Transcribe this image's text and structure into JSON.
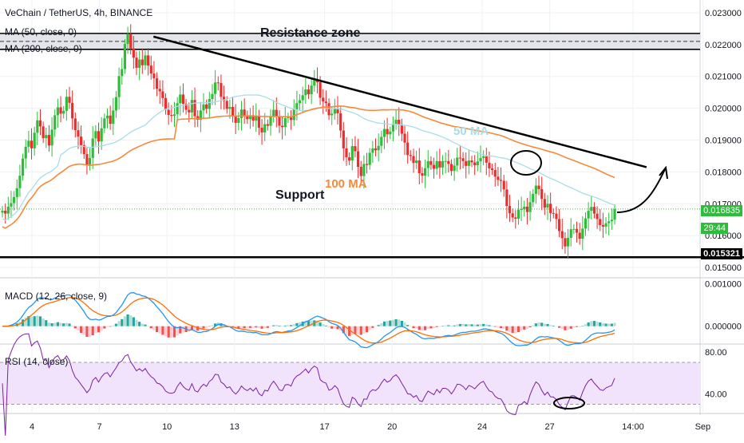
{
  "header": {
    "symbol": "VeChain / TetherUS, 4h, BINANCE",
    "ma50": "MA (50, close, 0)",
    "ma200": "MA (200, close, 0)"
  },
  "annotations": {
    "resistance": "Resistance zone",
    "support": "Support",
    "ma100": "100 MA",
    "ma50": "50 MA"
  },
  "price_tags": {
    "current": "0.016835",
    "countdown": "29:44",
    "support_level": "0.015321"
  },
  "macd_panel": {
    "label": "MACD (12, 26, close, 9)"
  },
  "rsi_panel": {
    "label": "RSI (14, close)"
  },
  "colors": {
    "up": "#26a69a",
    "up_bright": "#2ebd3a",
    "down": "#ef2b2b",
    "ma50": "#a9dde6",
    "ma100": "#f7893b",
    "rsi_fill": "#f1e3fb",
    "rsi_line": "#7b1fa2",
    "macd": "#2196f3",
    "signal": "#ff6d00"
  },
  "chart_data": [
    {
      "type": "candlestick",
      "title": "VeChain / TetherUS, 4h, BINANCE",
      "y_ticks": [
        "0.023000",
        "0.022000",
        "0.021000",
        "0.020000",
        "0.019000",
        "0.018000",
        "0.017000",
        "0.016000",
        "0.015000"
      ],
      "ylim": [
        0.0147,
        0.0234
      ],
      "x_ticks": [
        "4",
        "7",
        "10",
        "13",
        "17",
        "20",
        "24",
        "27",
        "14:00",
        "Sep"
      ],
      "resistance_zone": [
        0.02185,
        0.02235
      ],
      "support_level": 0.015321,
      "current_price": 0.016835,
      "trendline": [
        [
          9.4,
          0.02225
        ],
        [
          31.3,
          0.01815
        ]
      ],
      "closes": [
        0.01678,
        0.01669,
        0.01691,
        0.01702,
        0.01721,
        0.01749,
        0.01788,
        0.01842,
        0.01879,
        0.01898,
        0.01874,
        0.01923,
        0.01962,
        0.01943,
        0.01906,
        0.01916,
        0.01883,
        0.01933,
        0.01978,
        0.02003,
        0.01983,
        0.01992,
        0.02036,
        0.02017,
        0.01968,
        0.01931,
        0.01911,
        0.01884,
        0.01856,
        0.01823,
        0.01844,
        0.01905,
        0.01928,
        0.01896,
        0.01937,
        0.01968,
        0.01977,
        0.01951,
        0.01993,
        0.02035,
        0.02101,
        0.02123,
        0.02202,
        0.02233,
        0.02188,
        0.02159,
        0.02127,
        0.02153,
        0.02135,
        0.02166,
        0.02134,
        0.02109,
        0.02094,
        0.02061,
        0.02053,
        0.02032,
        0.01995,
        0.01979,
        0.01976,
        0.01981,
        0.02016,
        0.02043,
        0.02014,
        0.01995,
        0.01987,
        0.02026,
        0.01975,
        0.01964,
        0.01993,
        0.02012,
        0.01998,
        0.02029,
        0.02045,
        0.02081,
        0.02079,
        0.02036,
        0.02023,
        0.01998,
        0.02004,
        0.01974,
        0.01954,
        0.01969,
        0.01996,
        0.01978,
        0.01966,
        0.01978,
        0.01961,
        0.01976,
        0.01939,
        0.01924,
        0.0195,
        0.01945,
        0.01974,
        0.01995,
        0.01975,
        0.01945,
        0.01941,
        0.01969,
        0.01971,
        0.01963,
        0.01997,
        0.02016,
        0.02025,
        0.02041,
        0.02059,
        0.02044,
        0.02071,
        0.02089,
        0.02082,
        0.02033,
        0.02021,
        0.02016,
        0.01978,
        0.01983,
        0.01999,
        0.01984,
        0.0193,
        0.01874,
        0.01846,
        0.01836,
        0.01881,
        0.01865,
        0.01816,
        0.01787,
        0.01825,
        0.01822,
        0.0186,
        0.01874,
        0.01868,
        0.01882,
        0.0191,
        0.01935,
        0.01918,
        0.01927,
        0.01951,
        0.01964,
        0.01948,
        0.0192,
        0.01892,
        0.01853,
        0.0185,
        0.01828,
        0.01836,
        0.01796,
        0.01788,
        0.01812,
        0.01834,
        0.01822,
        0.0181,
        0.01834,
        0.01814,
        0.01834,
        0.01834,
        0.01825,
        0.01803,
        0.0182,
        0.01845,
        0.01843,
        0.01834,
        0.01819,
        0.01836,
        0.0183,
        0.01821,
        0.01833,
        0.01844,
        0.01849,
        0.01829,
        0.01811,
        0.01806,
        0.01785,
        0.01775,
        0.01772,
        0.01745,
        0.01693,
        0.0167,
        0.01657,
        0.01653,
        0.01681,
        0.01683,
        0.01691,
        0.01674,
        0.01705,
        0.01731,
        0.01757,
        0.01746,
        0.01715,
        0.01688,
        0.017,
        0.01671,
        0.01669,
        0.01652,
        0.01614,
        0.01592,
        0.01566,
        0.01593,
        0.0162,
        0.01621,
        0.01609,
        0.0159,
        0.01622,
        0.01654,
        0.01678,
        0.0169,
        0.01669,
        0.01652,
        0.01633,
        0.01628,
        0.01639,
        0.01645,
        0.0165,
        0.01683
      ]
    },
    {
      "type": "line",
      "title": "MACD (12, 26, close, 9)",
      "y_ticks": [
        "0.001000",
        "0.000000"
      ],
      "ylim": [
        -0.0004,
        0.0011
      ]
    },
    {
      "type": "line",
      "title": "RSI (14, close)",
      "y_ticks": [
        "80.00",
        "40.00"
      ],
      "ylim": [
        22,
        86
      ],
      "band": [
        30,
        70
      ]
    }
  ]
}
